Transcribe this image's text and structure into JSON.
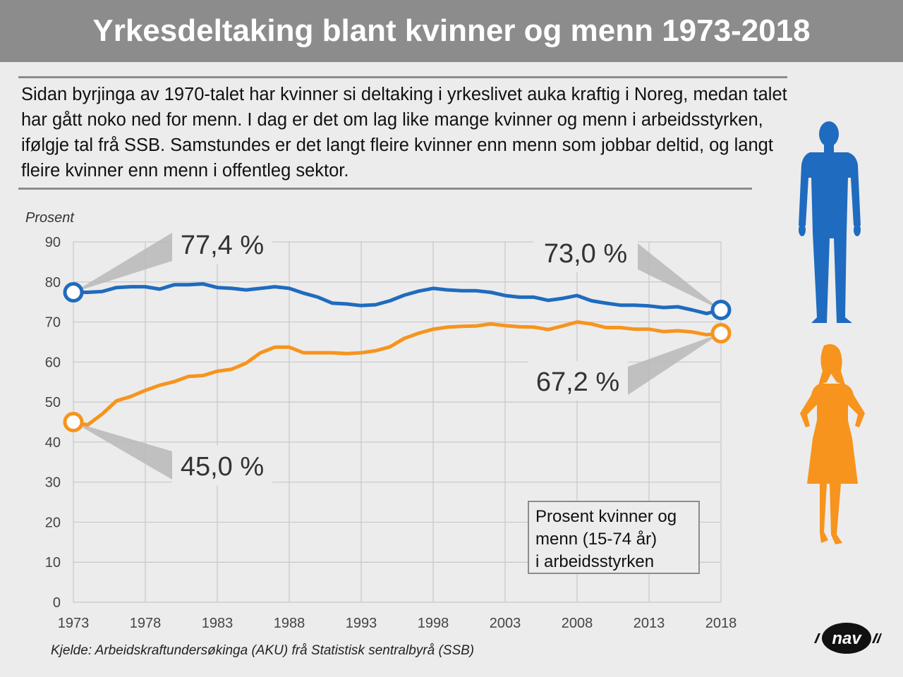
{
  "header": {
    "title": "Yrkesdeltaking blant kvinner og menn 1973-2018"
  },
  "intro": {
    "text": "Sidan byrjinga av 1970-talet har kvinner si deltaking i yrkeslivet auka kraftig i Noreg, medan talet har gått noko ned for menn. I dag er det om lag like mange kvinner og menn i arbeidsstyrken, ifølgje tal frå SSB. Samstundes er det langt fleire kvinner enn menn som jobbar deltid, og langt fleire kvinner enn menn i offentleg sektor."
  },
  "legend_note": {
    "lines": [
      "Prosent kvinner og",
      "menn (15-74 år)",
      "i arbeidsstyrken"
    ]
  },
  "source": "Kjelde: Arbeidskraftundersøkinga (AKU) frå Statistisk sentralbyrå (SSB)",
  "logo": {
    "text": "nav"
  },
  "colors": {
    "men": "#1f6bbf",
    "women": "#f7941d",
    "grid": "#c8c8c8",
    "rule": "#8c8c8c"
  },
  "icons": [
    "man-silhouette-icon",
    "woman-silhouette-icon",
    "nav-logo-icon"
  ],
  "chart_data": {
    "type": "line",
    "title": "",
    "xlabel": "",
    "ylabel": "Prosent",
    "ylim": [
      0,
      90
    ],
    "xlim": [
      1973,
      2018
    ],
    "yticks": [
      0,
      10,
      20,
      30,
      40,
      50,
      60,
      70,
      80,
      90
    ],
    "xticks": [
      1973,
      1978,
      1983,
      1988,
      1993,
      1998,
      2003,
      2008,
      2013,
      2018
    ],
    "grid": true,
    "x": [
      1973,
      1974,
      1975,
      1976,
      1977,
      1978,
      1979,
      1980,
      1981,
      1982,
      1983,
      1984,
      1985,
      1986,
      1987,
      1988,
      1989,
      1990,
      1991,
      1992,
      1993,
      1994,
      1995,
      1996,
      1997,
      1998,
      1999,
      2000,
      2001,
      2002,
      2003,
      2004,
      2005,
      2006,
      2007,
      2008,
      2009,
      2010,
      2011,
      2012,
      2013,
      2014,
      2015,
      2016,
      2017,
      2018
    ],
    "series": [
      {
        "key": "men",
        "values": [
          77.4,
          77.4,
          77.6,
          78.6,
          78.8,
          78.8,
          78.2,
          79.3,
          79.3,
          79.5,
          78.6,
          78.4,
          78.0,
          78.4,
          78.8,
          78.4,
          77.2,
          76.2,
          74.7,
          74.5,
          74.1,
          74.3,
          75.3,
          76.7,
          77.7,
          78.4,
          78.0,
          77.8,
          77.8,
          77.4,
          76.6,
          76.2,
          76.2,
          75.4,
          75.9,
          76.6,
          75.3,
          74.7,
          74.2,
          74.2,
          74.0,
          73.6,
          73.8,
          73.0,
          72.1,
          73.0
        ],
        "start_label": "77,4 %",
        "end_label": "73,0 %"
      },
      {
        "key": "women",
        "values": [
          45.0,
          44.3,
          47.0,
          50.3,
          51.4,
          52.9,
          54.2,
          55.1,
          56.4,
          56.6,
          57.7,
          58.2,
          59.7,
          62.3,
          63.7,
          63.7,
          62.3,
          62.3,
          62.3,
          62.1,
          62.3,
          62.8,
          63.8,
          65.9,
          67.2,
          68.2,
          68.7,
          68.9,
          69.0,
          69.5,
          69.1,
          68.8,
          68.7,
          68.1,
          69.0,
          70.0,
          69.5,
          68.6,
          68.6,
          68.2,
          68.2,
          67.6,
          67.8,
          67.5,
          66.8,
          67.2
        ],
        "start_label": "45,0 %",
        "end_label": "67,2 %"
      }
    ]
  }
}
